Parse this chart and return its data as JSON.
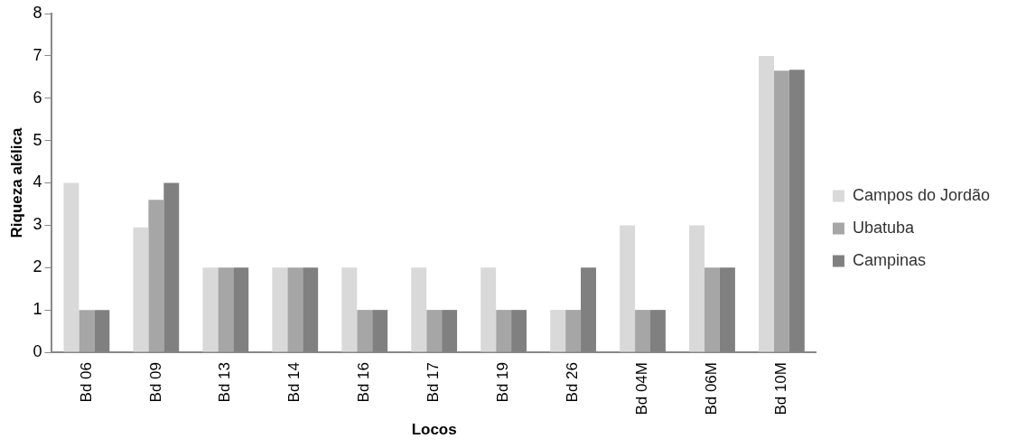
{
  "chart_data": {
    "type": "bar",
    "xlabel": "Locos",
    "ylabel": "Riqueza alélica",
    "categories": [
      "Bd 06",
      "Bd 09",
      "Bd 13",
      "Bd 14",
      "Bd 16",
      "Bd 17",
      "Bd 19",
      "Bd 26",
      "Bd 04M",
      "Bd 06M",
      "Bd 10M"
    ],
    "series": [
      {
        "name": "Campos do Jordão",
        "color": "#d9d9d9",
        "values": [
          4,
          2.95,
          2,
          2,
          2,
          2,
          2,
          1,
          3,
          3,
          7
        ]
      },
      {
        "name": "Ubatuba",
        "color": "#a6a6a6",
        "values": [
          1,
          3.6,
          2,
          2,
          1,
          1,
          1,
          1,
          1,
          2,
          6.65
        ]
      },
      {
        "name": "Campinas",
        "color": "#808080",
        "values": [
          1,
          4,
          2,
          2,
          1,
          1,
          1,
          2,
          1,
          2,
          6.67
        ]
      }
    ],
    "ylim": [
      0,
      8
    ],
    "yticks": [
      0,
      1,
      2,
      3,
      4,
      5,
      6,
      7,
      8
    ],
    "grid": false,
    "legend": "right"
  }
}
